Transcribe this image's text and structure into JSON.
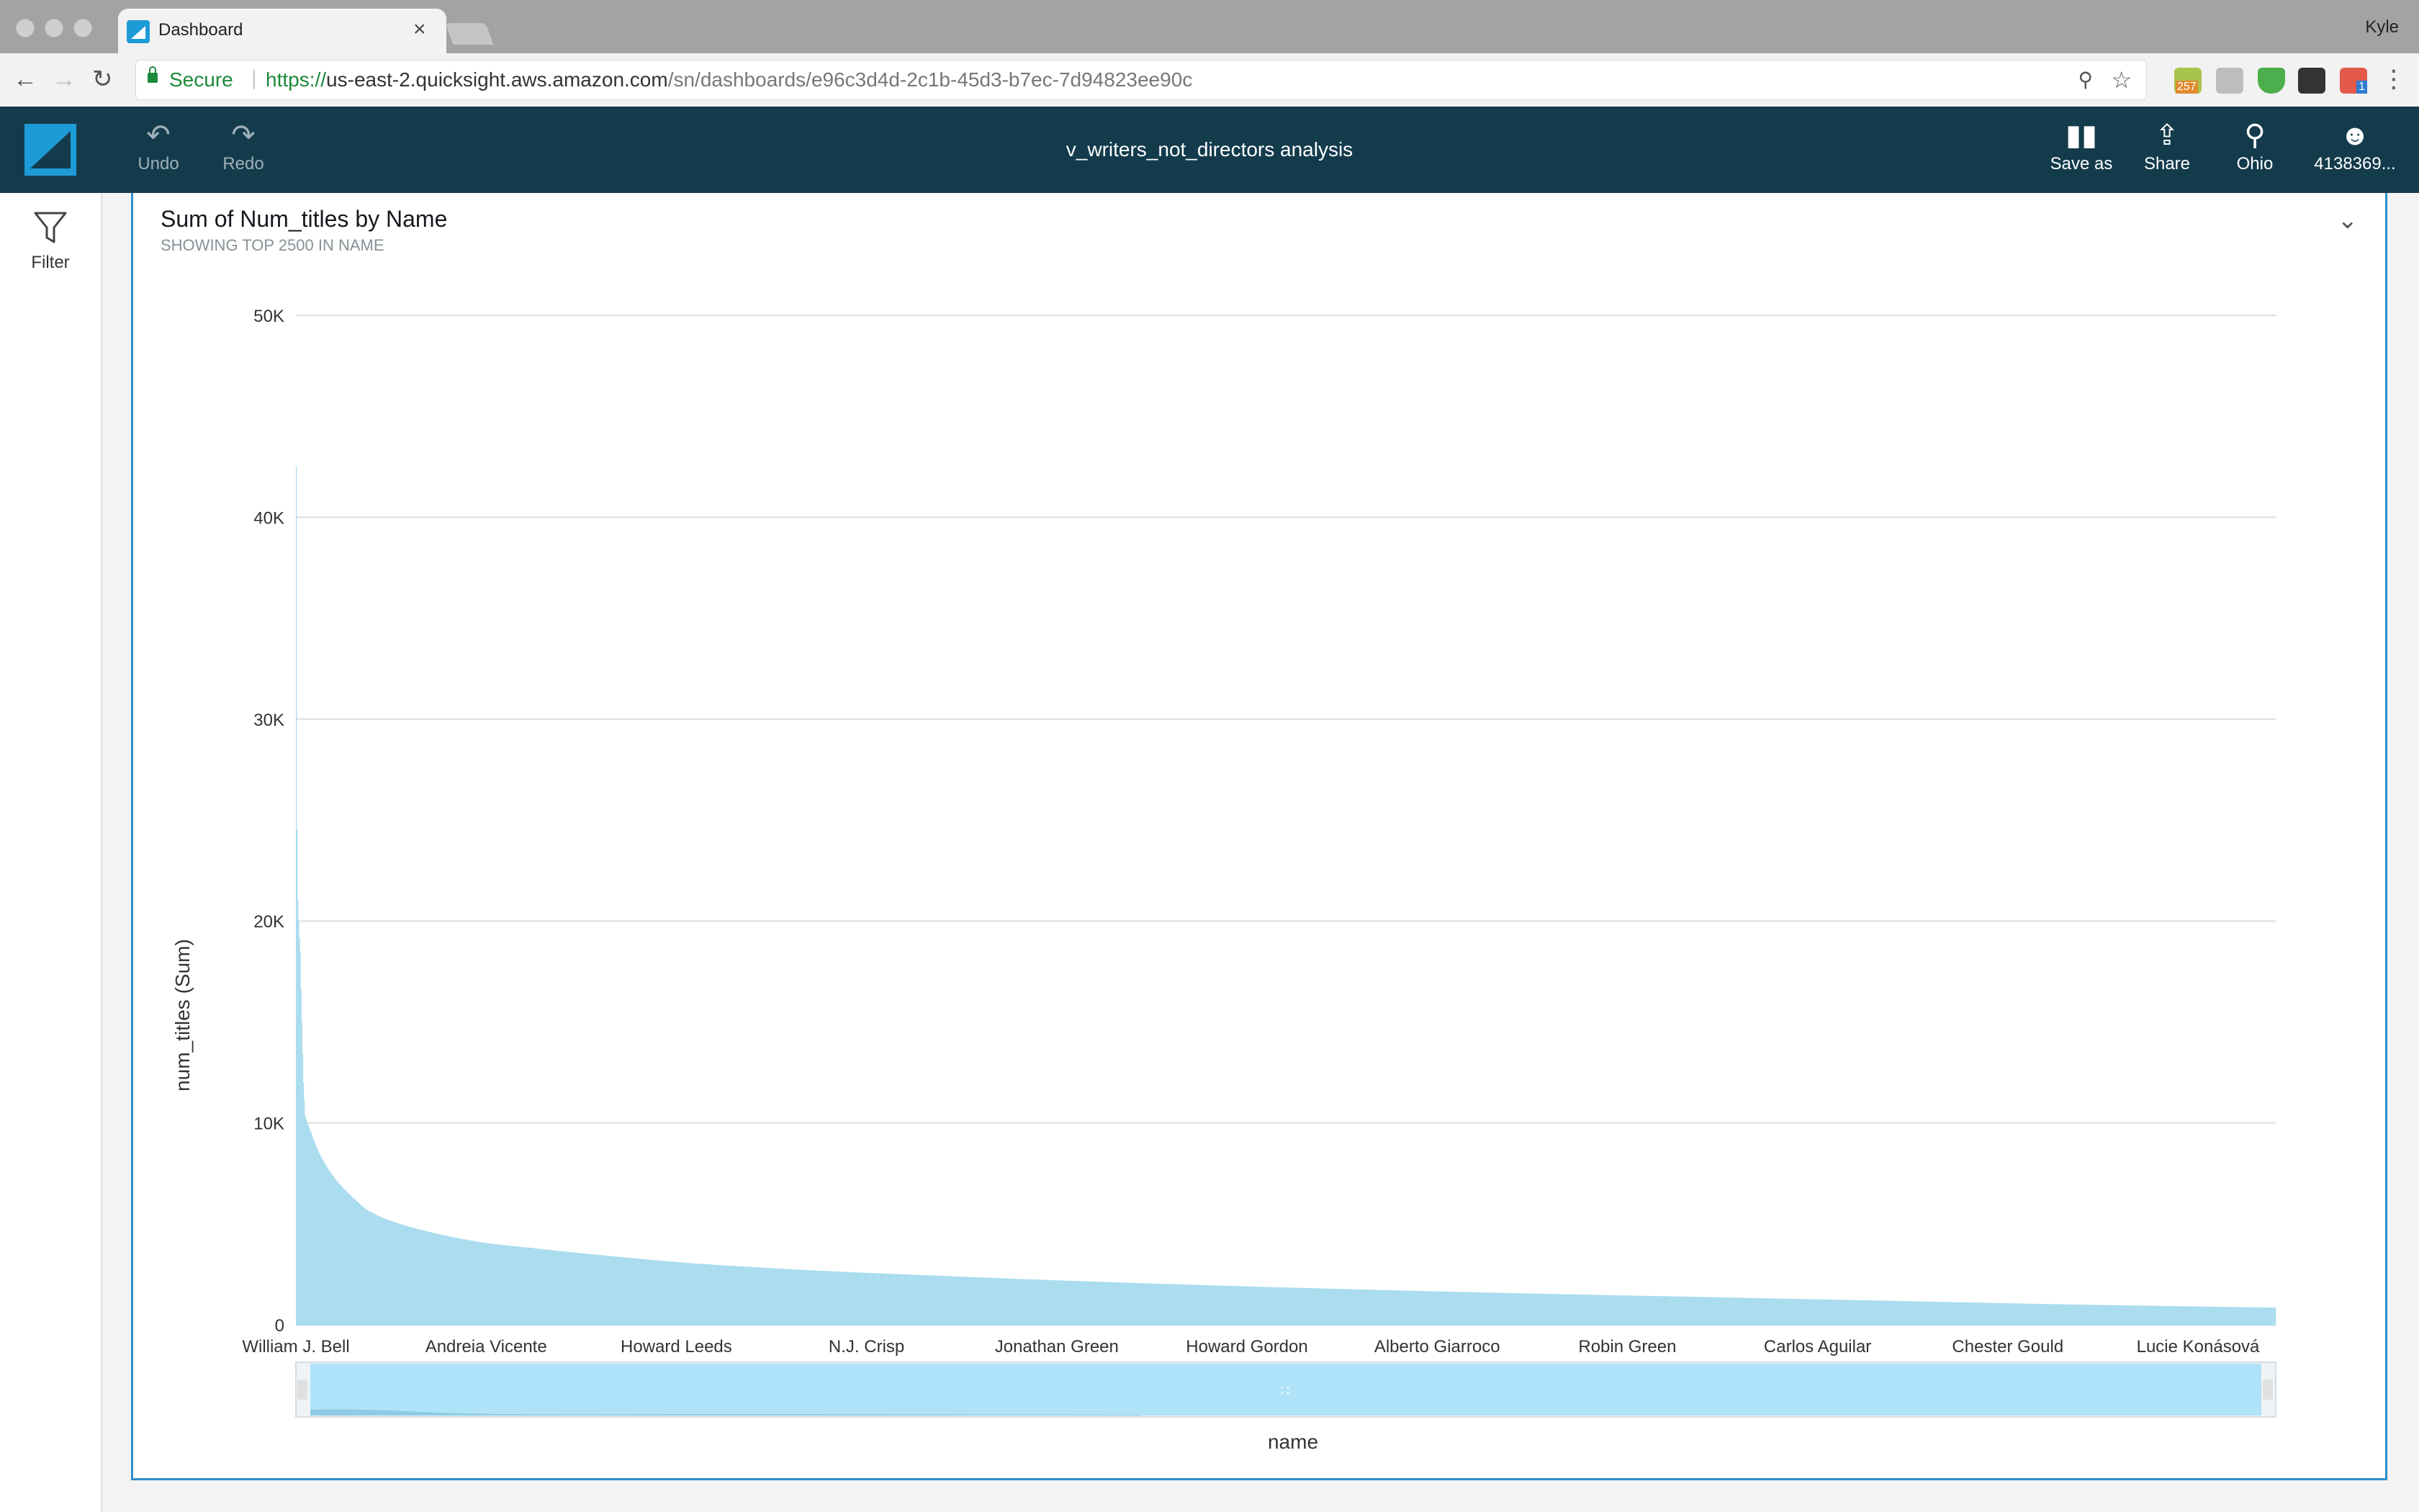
{
  "browser": {
    "tab_title": "Dashboard",
    "tab_close": "×",
    "profile_name": "Kyle",
    "secure_label": "Secure",
    "url_scheme": "https://",
    "url_host": "us-east-2.quicksight.aws.amazon.com",
    "url_path": "/sn/dashboards/e96c3d4d-2c1b-45d3-b7ec-7d94823ee90c",
    "ext_badge": "257",
    "ext_badge2": "1"
  },
  "header": {
    "undo_label": "Undo",
    "redo_label": "Redo",
    "title": "v_writers_not_directors analysis",
    "save_as_label": "Save as",
    "share_label": "Share",
    "region_label": "Ohio",
    "account_label": "4138369..."
  },
  "sidebar": {
    "filter_label": "Filter"
  },
  "visual": {
    "title": "Sum of Num_titles by Name",
    "subtitle": "SHOWING TOP 2500 IN NAME"
  },
  "colors": {
    "bar": "#a8dcee",
    "header_bg": "#133b4c",
    "accent": "#2e90c6",
    "scrollbar": "#aee3fa"
  },
  "chart_data": {
    "type": "bar",
    "xlabel": "name",
    "ylabel": "num_titles (Sum)",
    "ylim": [
      0,
      50000
    ],
    "y_ticks": [
      "0",
      "10K",
      "20K",
      "30K",
      "40K",
      "50K"
    ],
    "y_tick_values": [
      0,
      10000,
      20000,
      30000,
      40000,
      50000
    ],
    "grid": true,
    "category_count": 2500,
    "x_tick_labels": [
      "William J. Bell",
      "Andreia Vicente",
      "Howard Leeds",
      "N.J. Crisp",
      "Jonathan Green",
      "Howard Gordon",
      "Alberto Giarroco",
      "Robin Green",
      "Carlos Aguilar",
      "Chester Gould",
      "Lucie Konásová"
    ],
    "values_by_rank": [
      [
        1,
        42500
      ],
      [
        2,
        24500
      ],
      [
        3,
        21000
      ],
      [
        4,
        20000
      ],
      [
        6,
        18500
      ],
      [
        8,
        15000
      ],
      [
        10,
        12000
      ],
      [
        12,
        10400
      ],
      [
        20,
        9500
      ],
      [
        30,
        8500
      ],
      [
        40,
        7800
      ],
      [
        55,
        7000
      ],
      [
        70,
        6400
      ],
      [
        90,
        5700
      ],
      [
        110,
        5300
      ],
      [
        140,
        4900
      ],
      [
        180,
        4500
      ],
      [
        240,
        4050
      ],
      [
        300,
        3800
      ],
      [
        400,
        3400
      ],
      [
        500,
        3050
      ],
      [
        650,
        2700
      ],
      [
        800,
        2450
      ],
      [
        1000,
        2150
      ],
      [
        1250,
        1850
      ],
      [
        1500,
        1600
      ],
      [
        1750,
        1400
      ],
      [
        2000,
        1200
      ],
      [
        2250,
        1000
      ],
      [
        2500,
        850
      ]
    ]
  }
}
